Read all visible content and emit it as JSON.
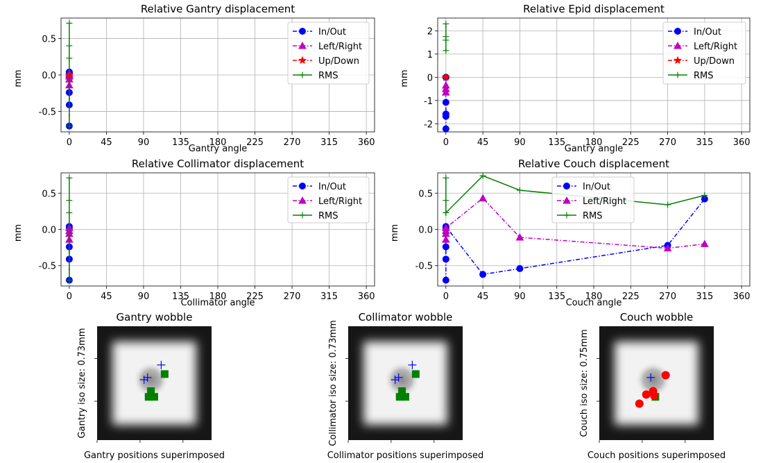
{
  "chart_data": [
    {
      "type": "line",
      "title": "Relative Gantry displacement",
      "xlabel": "Gantry angle",
      "ylabel": "mm",
      "xlim": [
        -10,
        370
      ],
      "ylim": [
        -0.78,
        0.78
      ],
      "xticks": [
        "0",
        "45",
        "90",
        "135",
        "180",
        "225",
        "270",
        "315",
        "360"
      ],
      "yticks": [
        "-0.5",
        "0.0",
        "0.5"
      ],
      "ytick_values": [
        -0.5,
        0.0,
        0.5
      ],
      "grid": true,
      "legend": "top-right",
      "series": [
        {
          "name": "In/Out",
          "color": "#0000ff",
          "marker": "circle",
          "dash": "dashdot",
          "x": [
            0,
            0,
            0,
            0,
            0,
            0
          ],
          "y": [
            -0.7,
            -0.41,
            -0.24,
            0.02,
            0.03,
            0.04
          ]
        },
        {
          "name": "Left/Right",
          "color": "#bf00bf",
          "marker": "triangle",
          "dash": "dashdot",
          "x": [
            0,
            0,
            0,
            0,
            0
          ],
          "y": [
            -0.14,
            -0.06,
            -0.02,
            0.0,
            0.02
          ]
        },
        {
          "name": "Up/Down",
          "color": "#ff0000",
          "marker": "star",
          "dash": "dashdot",
          "x": [
            0,
            0
          ],
          "y": [
            0.0,
            0.0
          ]
        },
        {
          "name": "RMS",
          "color": "#008000",
          "marker": "plus",
          "dash": "solid",
          "x": [
            0,
            0,
            0,
            0
          ],
          "y": [
            -0.7,
            0.23,
            0.4,
            0.71
          ]
        }
      ]
    },
    {
      "type": "line",
      "title": "Relative Epid displacement",
      "xlabel": "Gantry angle",
      "ylabel": "mm",
      "xlim": [
        -10,
        370
      ],
      "ylim": [
        -2.35,
        2.55
      ],
      "xticks": [
        "0",
        "45",
        "90",
        "135",
        "180",
        "225",
        "270",
        "315",
        "360"
      ],
      "yticks": [
        "-2",
        "-1",
        "0",
        "1",
        "2"
      ],
      "ytick_values": [
        -2,
        -1,
        0,
        1,
        2
      ],
      "grid": true,
      "legend": "top-right",
      "series": [
        {
          "name": "In/Out",
          "color": "#0000ff",
          "marker": "circle",
          "dash": "dashdot",
          "x": [
            0,
            0,
            0,
            0,
            0
          ],
          "y": [
            -2.22,
            -1.68,
            -1.58,
            -1.08,
            0.0
          ]
        },
        {
          "name": "Left/Right",
          "color": "#bf00bf",
          "marker": "triangle",
          "dash": "dashdot",
          "x": [
            0,
            0,
            0
          ],
          "y": [
            -0.65,
            -0.5,
            -0.35
          ]
        },
        {
          "name": "Up/Down",
          "color": "#ff0000",
          "marker": "star",
          "dash": "dashdot",
          "x": [
            0,
            0
          ],
          "y": [
            0.0,
            0.0
          ]
        },
        {
          "name": "RMS",
          "color": "#008000",
          "marker": "plus",
          "dash": "solid",
          "x": [
            0,
            0,
            0,
            0
          ],
          "y": [
            1.15,
            1.6,
            1.75,
            2.3
          ]
        }
      ]
    },
    {
      "type": "line",
      "title": "Relative Collimator displacement",
      "xlabel": "Collimator angle",
      "ylabel": "mm",
      "xlim": [
        -10,
        370
      ],
      "ylim": [
        -0.78,
        0.78
      ],
      "xticks": [
        "0",
        "45",
        "90",
        "135",
        "180",
        "225",
        "270",
        "315",
        "360"
      ],
      "yticks": [
        "-0.5",
        "0.0",
        "0.5"
      ],
      "ytick_values": [
        -0.5,
        0.0,
        0.5
      ],
      "grid": true,
      "legend": "top-right",
      "series": [
        {
          "name": "In/Out",
          "color": "#0000ff",
          "marker": "circle",
          "dash": "dashdot",
          "x": [
            0,
            0,
            0,
            0,
            0
          ],
          "y": [
            -0.7,
            -0.41,
            -0.24,
            0.02,
            0.04
          ]
        },
        {
          "name": "Left/Right",
          "color": "#bf00bf",
          "marker": "triangle",
          "dash": "dashdot",
          "x": [
            0,
            0,
            0,
            0
          ],
          "y": [
            -0.14,
            -0.06,
            -0.02,
            0.02
          ]
        },
        {
          "name": "RMS",
          "color": "#008000",
          "marker": "plus",
          "dash": "solid",
          "x": [
            0,
            0,
            0,
            0
          ],
          "y": [
            -0.7,
            0.23,
            0.4,
            0.71
          ]
        }
      ]
    },
    {
      "type": "line",
      "title": "Relative Couch displacement",
      "xlabel": "Couch angle",
      "ylabel": "mm",
      "xlim": [
        -10,
        370
      ],
      "ylim": [
        -0.78,
        0.78
      ],
      "xticks": [
        "0",
        "45",
        "90",
        "135",
        "180",
        "225",
        "270",
        "315",
        "360"
      ],
      "yticks": [
        "-0.5",
        "0.0",
        "0.5"
      ],
      "ytick_values": [
        -0.5,
        0.0,
        0.5
      ],
      "grid": true,
      "legend": "top-center",
      "series": [
        {
          "name": "In/Out",
          "color": "#0000ff",
          "marker": "circle",
          "dash": "dashdot",
          "x": [
            0,
            0,
            0,
            0,
            0,
            45,
            90,
            270,
            315
          ],
          "y": [
            -0.7,
            -0.41,
            -0.24,
            0.02,
            0.04,
            -0.62,
            -0.54,
            -0.22,
            0.42
          ]
        },
        {
          "name": "Left/Right",
          "color": "#bf00bf",
          "marker": "triangle",
          "dash": "dashdot",
          "x": [
            0,
            0,
            0,
            0,
            45,
            90,
            270,
            315
          ],
          "y": [
            -0.14,
            -0.06,
            -0.02,
            0.02,
            0.43,
            -0.11,
            -0.26,
            -0.2
          ]
        },
        {
          "name": "RMS",
          "color": "#008000",
          "marker": "plus",
          "dash": "solid",
          "x": [
            0,
            0,
            0,
            0,
            45,
            90,
            270,
            315
          ],
          "y": [
            0.23,
            0.4,
            0.71,
            0.23,
            0.74,
            0.54,
            0.34,
            0.47
          ]
        }
      ]
    }
  ],
  "wobble_images": [
    {
      "title": "Gantry wobble",
      "ylabel": "Gantry iso size: 0.73mm",
      "xlabel": "Gantry positions superimposed",
      "markers": [
        {
          "kind": "plus",
          "color": "#0000ff",
          "u": 0.41,
          "v": 0.47
        },
        {
          "kind": "plus",
          "color": "#0000ff",
          "u": 0.44,
          "v": 0.45
        },
        {
          "kind": "plus",
          "color": "#0000ff",
          "u": 0.56,
          "v": 0.34
        },
        {
          "kind": "square",
          "color": "#008000",
          "u": 0.59,
          "v": 0.42
        },
        {
          "kind": "square",
          "color": "#008000",
          "u": 0.47,
          "v": 0.57
        },
        {
          "kind": "square",
          "color": "#008000",
          "u": 0.45,
          "v": 0.62
        },
        {
          "kind": "square",
          "color": "#008000",
          "u": 0.5,
          "v": 0.62
        }
      ]
    },
    {
      "title": "Collimator wobble",
      "ylabel": "Collimator iso size: 0.73mm",
      "xlabel": "Collimator positions superimposed",
      "markers": [
        {
          "kind": "plus",
          "color": "#0000ff",
          "u": 0.41,
          "v": 0.47
        },
        {
          "kind": "plus",
          "color": "#0000ff",
          "u": 0.44,
          "v": 0.45
        },
        {
          "kind": "plus",
          "color": "#0000ff",
          "u": 0.56,
          "v": 0.34
        },
        {
          "kind": "square",
          "color": "#008000",
          "u": 0.59,
          "v": 0.42
        },
        {
          "kind": "square",
          "color": "#008000",
          "u": 0.47,
          "v": 0.57
        },
        {
          "kind": "square",
          "color": "#008000",
          "u": 0.45,
          "v": 0.62
        },
        {
          "kind": "square",
          "color": "#008000",
          "u": 0.5,
          "v": 0.62
        }
      ]
    },
    {
      "title": "Couch wobble",
      "ylabel": "Couch iso size: 0.75mm",
      "xlabel": "Couch positions superimposed",
      "markers": [
        {
          "kind": "plus",
          "color": "#0000ff",
          "u": 0.45,
          "v": 0.45
        },
        {
          "kind": "square",
          "color": "#008000",
          "u": 0.49,
          "v": 0.62
        },
        {
          "kind": "dot",
          "color": "#ff0000",
          "u": 0.58,
          "v": 0.43
        },
        {
          "kind": "dot",
          "color": "#ff0000",
          "u": 0.47,
          "v": 0.57
        },
        {
          "kind": "dot",
          "color": "#ff0000",
          "u": 0.48,
          "v": 0.61
        },
        {
          "kind": "dot",
          "color": "#ff0000",
          "u": 0.41,
          "v": 0.6
        },
        {
          "kind": "dot",
          "color": "#ff0000",
          "u": 0.35,
          "v": 0.68
        }
      ]
    }
  ]
}
